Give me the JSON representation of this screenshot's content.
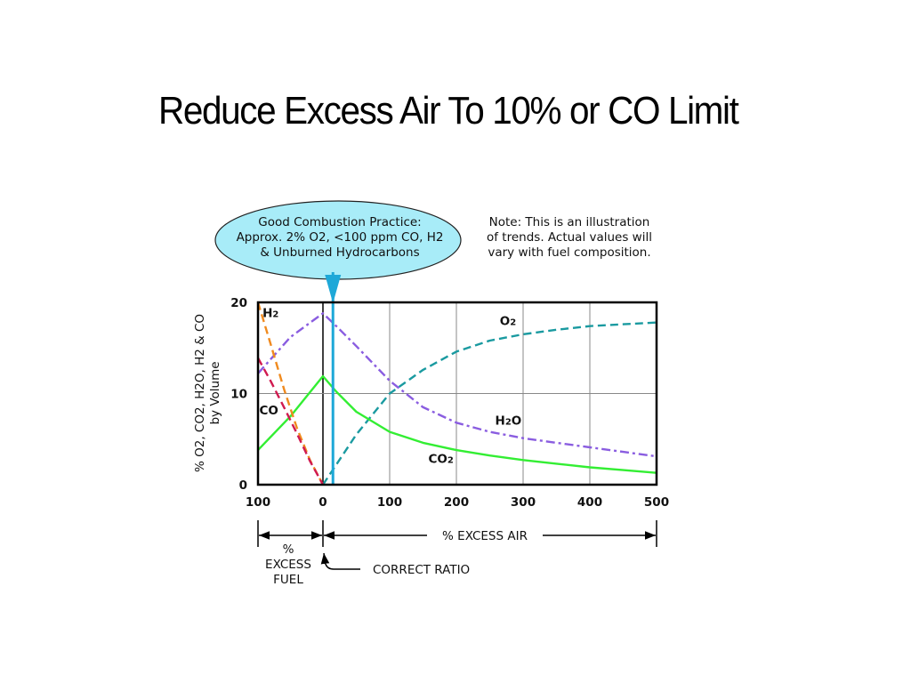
{
  "slide": {
    "title": "Reduce Excess Air To 10% or CO Limit"
  },
  "callout": {
    "lines": [
      "Good Combustion Practice:",
      "Approx. 2% O2, <100 ppm CO, H2",
      "& Unburned Hydrocarbons"
    ]
  },
  "note": {
    "lines": [
      "Note:  This is an illustration",
      "of trends.  Actual values will",
      "vary with fuel composition."
    ]
  },
  "colors": {
    "O2": "#1a9aa0",
    "CO2": "#33ee33",
    "H2O": "#8a5de0",
    "H2": "#f08a1e",
    "CO": "#d01a50",
    "marker": "#1ea8d8",
    "callout_fill": "#a8ecf8"
  },
  "chart_data": {
    "type": "line",
    "ylabel_lines": [
      "% O2, CO2, H2O, H2 & CO",
      "by Volume"
    ],
    "ylim": [
      0,
      20
    ],
    "yticks": [
      "0",
      "10",
      "20"
    ],
    "xticks": [
      "100",
      "0",
      "100",
      "200",
      "300",
      "400",
      "500"
    ],
    "xtick_values": [
      -100,
      0,
      100,
      200,
      300,
      400,
      500
    ],
    "xlim": [
      -100,
      500
    ],
    "marker_x": 15,
    "series": [
      {
        "name": "O2",
        "style": "dash",
        "points": [
          [
            0,
            0
          ],
          [
            20,
            2.2
          ],
          [
            50,
            5.5
          ],
          [
            100,
            10
          ],
          [
            150,
            12.6
          ],
          [
            200,
            14.6
          ],
          [
            250,
            15.8
          ],
          [
            300,
            16.5
          ],
          [
            350,
            17
          ],
          [
            400,
            17.4
          ],
          [
            450,
            17.6
          ],
          [
            500,
            17.8
          ]
        ]
      },
      {
        "name": "CO2",
        "style": "solid",
        "points": [
          [
            -100,
            3.8
          ],
          [
            -50,
            7.5
          ],
          [
            0,
            11.9
          ],
          [
            20,
            10.2
          ],
          [
            50,
            8
          ],
          [
            100,
            5.8
          ],
          [
            150,
            4.6
          ],
          [
            200,
            3.8
          ],
          [
            250,
            3.2
          ],
          [
            300,
            2.7
          ],
          [
            350,
            2.3
          ],
          [
            400,
            1.9
          ],
          [
            450,
            1.6
          ],
          [
            500,
            1.3
          ]
        ]
      },
      {
        "name": "H2O",
        "style": "dashdot",
        "points": [
          [
            -100,
            12.2
          ],
          [
            -50,
            16.2
          ],
          [
            0,
            18.8
          ],
          [
            20,
            17.4
          ],
          [
            50,
            15.2
          ],
          [
            100,
            11.4
          ],
          [
            150,
            8.5
          ],
          [
            200,
            6.8
          ],
          [
            250,
            5.8
          ],
          [
            300,
            5.1
          ],
          [
            350,
            4.6
          ],
          [
            400,
            4.1
          ],
          [
            450,
            3.6
          ],
          [
            500,
            3.1
          ]
        ]
      },
      {
        "name": "H2",
        "style": "dash",
        "points": [
          [
            -100,
            20
          ],
          [
            -80,
            15.3
          ],
          [
            -60,
            10.5
          ],
          [
            -40,
            6.2
          ],
          [
            -20,
            2.7
          ],
          [
            0,
            0
          ]
        ]
      },
      {
        "name": "CO",
        "style": "dash",
        "points": [
          [
            -100,
            13.9
          ],
          [
            -80,
            11.3
          ],
          [
            -60,
            8.5
          ],
          [
            -40,
            5.6
          ],
          [
            -20,
            2.6
          ],
          [
            0,
            0
          ]
        ]
      }
    ],
    "curve_labels": [
      {
        "name": "H2",
        "text": "H2",
        "x": -93,
        "y": 18.4
      },
      {
        "name": "O2",
        "text": "O2",
        "x": 265,
        "y": 17.5
      },
      {
        "name": "CO",
        "text": "CO",
        "x": -98,
        "y": 7.7
      },
      {
        "name": "H2O",
        "text": "H2O",
        "x": 258,
        "y": 6.6
      },
      {
        "name": "CO2",
        "text": "CO2",
        "x": 158,
        "y": 2.4
      }
    ],
    "annotations": {
      "excess_fuel": [
        "%",
        "EXCESS",
        "FUEL"
      ],
      "excess_air": "% EXCESS AIR",
      "correct_ratio": "CORRECT RATIO"
    }
  }
}
